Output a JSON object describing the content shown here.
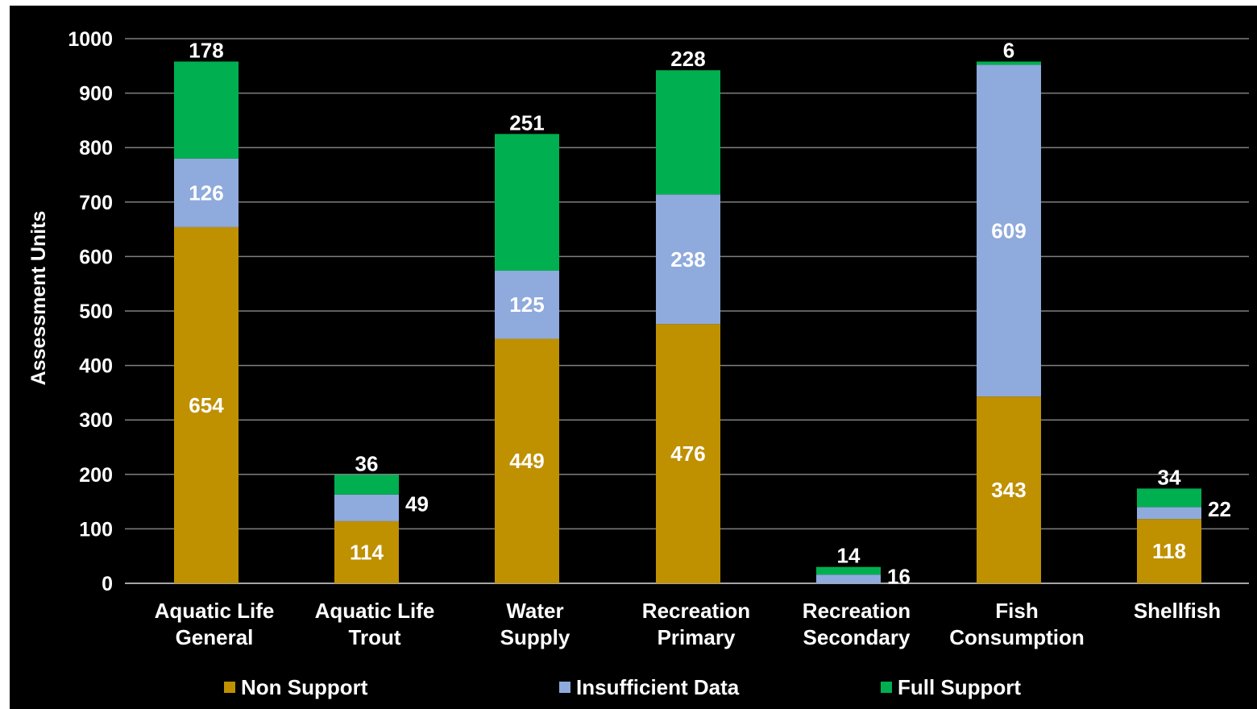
{
  "chart_data": {
    "type": "bar",
    "stacked": true,
    "title": "",
    "xlabel": "",
    "ylabel": "Assessment Units",
    "ylim": [
      0,
      1000
    ],
    "yticks": [
      0,
      100,
      200,
      300,
      400,
      500,
      600,
      700,
      800,
      900,
      1000
    ],
    "grid": true,
    "legend_position": "bottom",
    "categories": [
      [
        "Aquatic Life",
        "General"
      ],
      [
        "Aquatic Life",
        "Trout"
      ],
      [
        "Water",
        "Supply"
      ],
      [
        "Recreation",
        "Primary"
      ],
      [
        "Recreation",
        "Secondary"
      ],
      [
        "Fish",
        "Consumption"
      ],
      [
        "Shellfish"
      ]
    ],
    "series": [
      {
        "name": "Non Support",
        "color": "#bf9000",
        "values": [
          654,
          114,
          449,
          476,
          0,
          343,
          118
        ],
        "labels": [
          "654",
          "114",
          "449",
          "476",
          "",
          "343",
          "118"
        ]
      },
      {
        "name": "Insufficient Data",
        "color": "#8faadc",
        "values": [
          126,
          49,
          125,
          238,
          16,
          609,
          22
        ],
        "labels": [
          "126",
          "49",
          "125",
          "238",
          "16",
          "609",
          "22"
        ]
      },
      {
        "name": "Full Support",
        "color": "#00b050",
        "values": [
          178,
          36,
          251,
          228,
          14,
          6,
          34
        ],
        "labels": [
          "178",
          "36",
          "251",
          "228",
          "14",
          "6",
          "34"
        ]
      }
    ]
  }
}
